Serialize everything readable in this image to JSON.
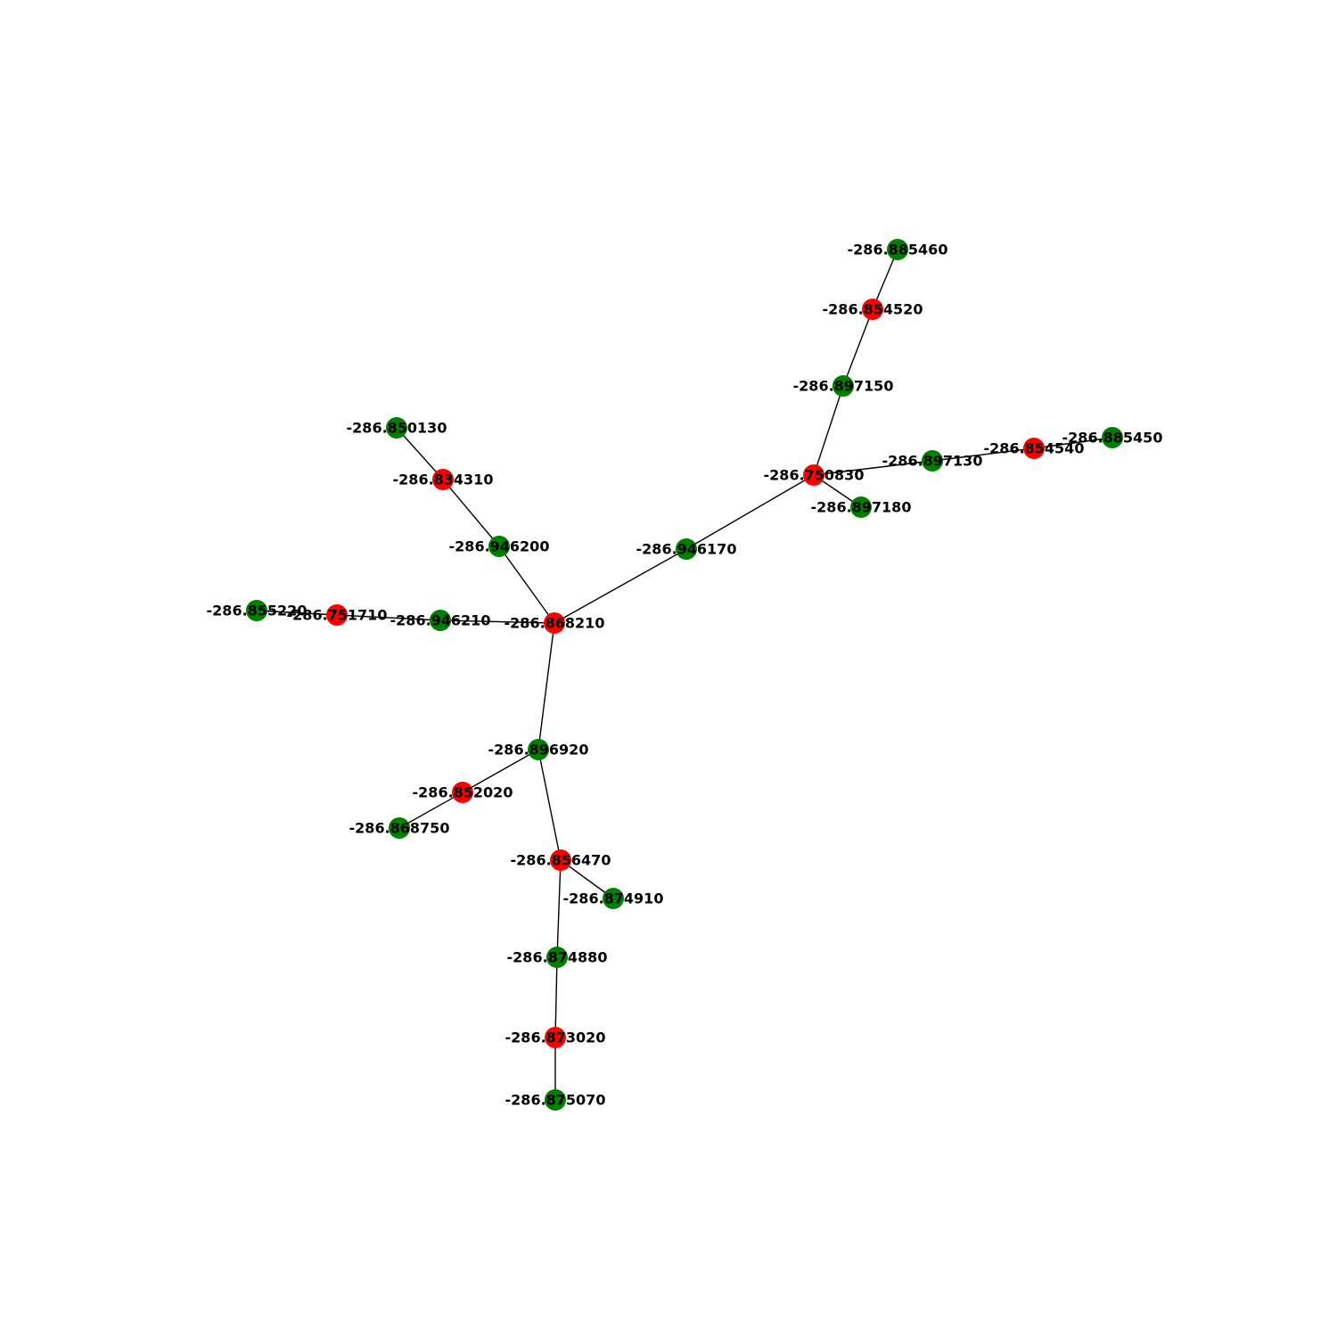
{
  "colors": {
    "red_node": "#ff0000",
    "green_node": "#008000",
    "edge": "#000000"
  },
  "nodes": [
    {
      "id": "n1",
      "label": "-286.885460",
      "color": "green"
    },
    {
      "id": "n2",
      "label": "-286.854520",
      "color": "red"
    },
    {
      "id": "n3",
      "label": "-286.897150",
      "color": "green"
    },
    {
      "id": "n4",
      "label": "-286.750830",
      "color": "red"
    },
    {
      "id": "n5",
      "label": "-286.897130",
      "color": "green"
    },
    {
      "id": "n6",
      "label": "-286.854540",
      "color": "red"
    },
    {
      "id": "n7",
      "label": "-286.885450",
      "color": "green"
    },
    {
      "id": "n8",
      "label": "-286.897180",
      "color": "green"
    },
    {
      "id": "n9",
      "label": "-286.946170",
      "color": "green"
    },
    {
      "id": "n10",
      "label": "-286.868210",
      "color": "red"
    },
    {
      "id": "n11",
      "label": "-286.946200",
      "color": "green"
    },
    {
      "id": "n12",
      "label": "-286.834310",
      "color": "red"
    },
    {
      "id": "n13",
      "label": "-286.850130",
      "color": "green"
    },
    {
      "id": "n14",
      "label": "-286.946210",
      "color": "green"
    },
    {
      "id": "n15",
      "label": "-286.751710",
      "color": "red"
    },
    {
      "id": "n16",
      "label": "-286.855220",
      "color": "green"
    },
    {
      "id": "n17",
      "label": "-286.896920",
      "color": "green"
    },
    {
      "id": "n18",
      "label": "-286.852020",
      "color": "red"
    },
    {
      "id": "n19",
      "label": "-286.868750",
      "color": "green"
    },
    {
      "id": "n20",
      "label": "-286.856470",
      "color": "red"
    },
    {
      "id": "n21",
      "label": "-286.874910",
      "color": "green"
    },
    {
      "id": "n22",
      "label": "-286.874880",
      "color": "green"
    },
    {
      "id": "n23",
      "label": "-286.873020",
      "color": "red"
    },
    {
      "id": "n24",
      "label": "-286.875070",
      "color": "green"
    }
  ],
  "edges": [
    [
      "n1",
      "n2"
    ],
    [
      "n2",
      "n3"
    ],
    [
      "n3",
      "n4"
    ],
    [
      "n4",
      "n5"
    ],
    [
      "n5",
      "n6"
    ],
    [
      "n6",
      "n7"
    ],
    [
      "n4",
      "n8"
    ],
    [
      "n4",
      "n9"
    ],
    [
      "n9",
      "n10"
    ],
    [
      "n10",
      "n11"
    ],
    [
      "n11",
      "n12"
    ],
    [
      "n12",
      "n13"
    ],
    [
      "n10",
      "n14"
    ],
    [
      "n14",
      "n15"
    ],
    [
      "n15",
      "n16"
    ],
    [
      "n10",
      "n17"
    ],
    [
      "n17",
      "n18"
    ],
    [
      "n18",
      "n19"
    ],
    [
      "n17",
      "n20"
    ],
    [
      "n20",
      "n21"
    ],
    [
      "n20",
      "n22"
    ],
    [
      "n22",
      "n23"
    ],
    [
      "n23",
      "n24"
    ]
  ]
}
